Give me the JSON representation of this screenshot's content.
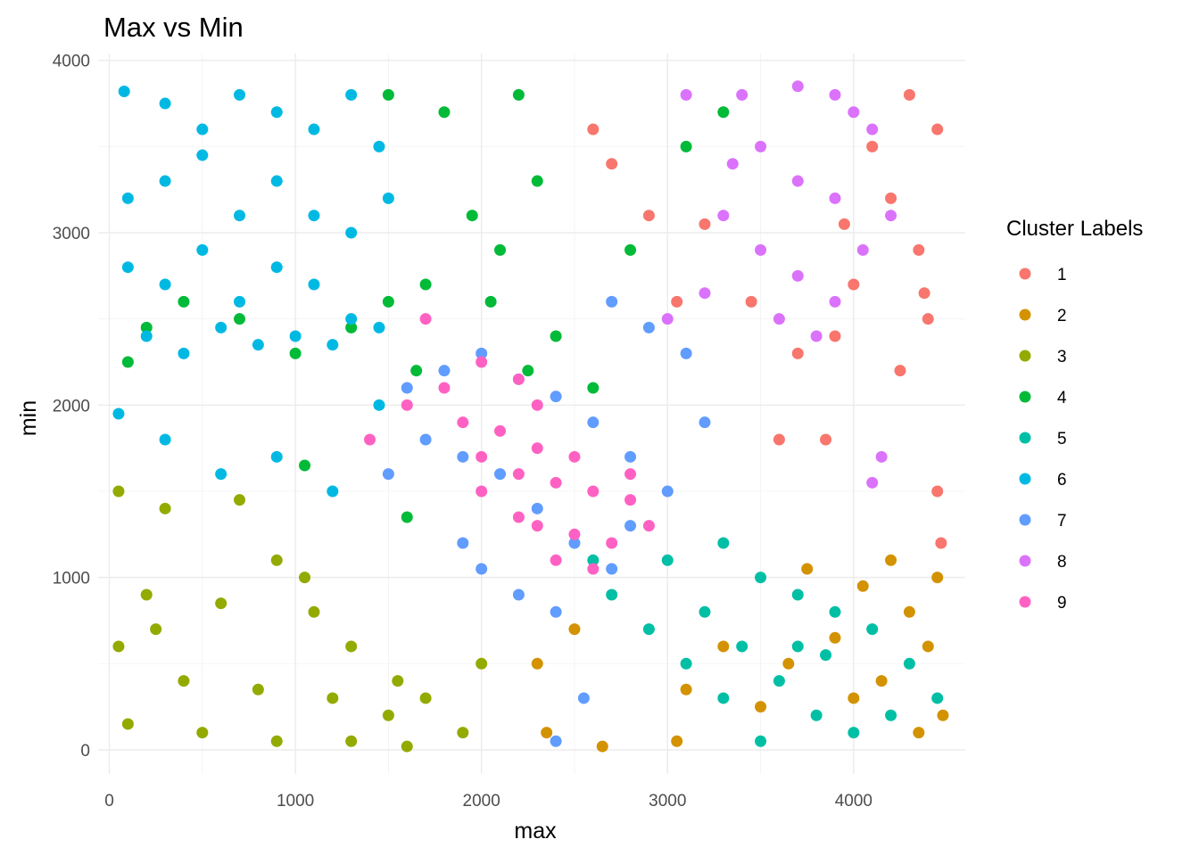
{
  "chart_data": {
    "type": "scatter",
    "title": "Max vs Min",
    "xlabel": "max",
    "ylabel": "min",
    "xlim": [
      -60,
      4600
    ],
    "ylim": [
      -140,
      4040
    ],
    "x_ticks": [
      0,
      1000,
      2000,
      3000,
      4000
    ],
    "y_ticks": [
      0,
      1000,
      2000,
      3000,
      4000
    ],
    "grid": true,
    "legend": {
      "title": "Cluster Labels",
      "position": "right"
    },
    "series": [
      {
        "name": "1",
        "color": "#F8766D",
        "points": [
          [
            4300,
            3800
          ],
          [
            4450,
            3600
          ],
          [
            4200,
            3200
          ],
          [
            4350,
            2900
          ],
          [
            4400,
            2500
          ],
          [
            4250,
            2200
          ],
          [
            4100,
            3500
          ],
          [
            3950,
            3050
          ],
          [
            4380,
            2650
          ],
          [
            3900,
            2400
          ],
          [
            3700,
            2300
          ],
          [
            3450,
            2600
          ],
          [
            3200,
            3050
          ],
          [
            3050,
            2600
          ],
          [
            2900,
            3100
          ],
          [
            2700,
            3400
          ],
          [
            2600,
            3600
          ],
          [
            3600,
            1800
          ],
          [
            3850,
            1800
          ],
          [
            4450,
            1500
          ],
          [
            4470,
            1200
          ],
          [
            4000,
            2700
          ]
        ]
      },
      {
        "name": "2",
        "color": "#D39200",
        "points": [
          [
            4200,
            1100
          ],
          [
            4050,
            950
          ],
          [
            4300,
            800
          ],
          [
            4400,
            600
          ],
          [
            4150,
            400
          ],
          [
            4480,
            200
          ],
          [
            4350,
            100
          ],
          [
            4000,
            300
          ],
          [
            3900,
            650
          ],
          [
            3650,
            500
          ],
          [
            3500,
            250
          ],
          [
            3300,
            600
          ],
          [
            3100,
            350
          ],
          [
            3050,
            50
          ],
          [
            2500,
            700
          ],
          [
            2300,
            500
          ],
          [
            2350,
            100
          ],
          [
            2650,
            20
          ],
          [
            4450,
            1000
          ],
          [
            3750,
            1050
          ]
        ]
      },
      {
        "name": "3",
        "color": "#93AA00",
        "points": [
          [
            50,
            1500
          ],
          [
            300,
            1400
          ],
          [
            700,
            1450
          ],
          [
            900,
            1100
          ],
          [
            200,
            900
          ],
          [
            600,
            850
          ],
          [
            1100,
            800
          ],
          [
            1300,
            600
          ],
          [
            50,
            600
          ],
          [
            400,
            400
          ],
          [
            800,
            350
          ],
          [
            1200,
            300
          ],
          [
            1500,
            200
          ],
          [
            100,
            150
          ],
          [
            500,
            100
          ],
          [
            900,
            50
          ],
          [
            1300,
            50
          ],
          [
            1550,
            400
          ],
          [
            1700,
            300
          ],
          [
            2000,
            500
          ],
          [
            1900,
            100
          ],
          [
            1600,
            20
          ],
          [
            250,
            700
          ],
          [
            1050,
            1000
          ]
        ]
      },
      {
        "name": "4",
        "color": "#00BA38",
        "points": [
          [
            1500,
            3800
          ],
          [
            1800,
            3700
          ],
          [
            2200,
            3800
          ],
          [
            2300,
            3300
          ],
          [
            1950,
            3100
          ],
          [
            2100,
            2900
          ],
          [
            1700,
            2700
          ],
          [
            1500,
            2600
          ],
          [
            1300,
            2450
          ],
          [
            1000,
            2300
          ],
          [
            700,
            2500
          ],
          [
            400,
            2600
          ],
          [
            200,
            2450
          ],
          [
            100,
            2250
          ],
          [
            1050,
            1650
          ],
          [
            1600,
            1350
          ],
          [
            2400,
            2400
          ],
          [
            2600,
            2100
          ],
          [
            2800,
            2900
          ],
          [
            3100,
            3500
          ],
          [
            3300,
            3700
          ],
          [
            2250,
            2200
          ],
          [
            2050,
            2600
          ],
          [
            1650,
            2200
          ]
        ]
      },
      {
        "name": "5",
        "color": "#00BFA5",
        "points": [
          [
            3000,
            1100
          ],
          [
            3300,
            1200
          ],
          [
            3500,
            1000
          ],
          [
            3700,
            900
          ],
          [
            3900,
            800
          ],
          [
            4100,
            700
          ],
          [
            4300,
            500
          ],
          [
            4450,
            300
          ],
          [
            3200,
            800
          ],
          [
            3400,
            600
          ],
          [
            3600,
            400
          ],
          [
            3800,
            200
          ],
          [
            4000,
            100
          ],
          [
            3100,
            500
          ],
          [
            3300,
            300
          ],
          [
            3500,
            50
          ],
          [
            2700,
            900
          ],
          [
            2600,
            1100
          ],
          [
            2900,
            700
          ],
          [
            3700,
            600
          ],
          [
            4200,
            200
          ],
          [
            3850,
            550
          ]
        ]
      },
      {
        "name": "6",
        "color": "#00B9E3",
        "points": [
          [
            80,
            3820
          ],
          [
            300,
            3750
          ],
          [
            500,
            3600
          ],
          [
            700,
            3800
          ],
          [
            900,
            3700
          ],
          [
            1100,
            3600
          ],
          [
            1300,
            3800
          ],
          [
            1450,
            3500
          ],
          [
            100,
            3200
          ],
          [
            300,
            3300
          ],
          [
            500,
            3450
          ],
          [
            700,
            3100
          ],
          [
            900,
            3300
          ],
          [
            1100,
            3100
          ],
          [
            1300,
            3000
          ],
          [
            1500,
            3200
          ],
          [
            100,
            2800
          ],
          [
            300,
            2700
          ],
          [
            500,
            2900
          ],
          [
            700,
            2600
          ],
          [
            900,
            2800
          ],
          [
            1100,
            2700
          ],
          [
            1300,
            2500
          ],
          [
            1450,
            2450
          ],
          [
            200,
            2400
          ],
          [
            400,
            2300
          ],
          [
            600,
            2450
          ],
          [
            800,
            2350
          ],
          [
            1000,
            2400
          ],
          [
            1200,
            2350
          ],
          [
            50,
            1950
          ],
          [
            300,
            1800
          ],
          [
            600,
            1600
          ],
          [
            900,
            1700
          ],
          [
            1200,
            1500
          ],
          [
            1450,
            2000
          ]
        ]
      },
      {
        "name": "7",
        "color": "#619CFF",
        "points": [
          [
            1600,
            2100
          ],
          [
            1800,
            2200
          ],
          [
            2000,
            2300
          ],
          [
            2200,
            2150
          ],
          [
            2400,
            2050
          ],
          [
            2600,
            1900
          ],
          [
            2800,
            1700
          ],
          [
            3000,
            1500
          ],
          [
            1700,
            1800
          ],
          [
            1900,
            1700
          ],
          [
            2100,
            1600
          ],
          [
            2300,
            1400
          ],
          [
            2500,
            1200
          ],
          [
            2700,
            1050
          ],
          [
            1500,
            1600
          ],
          [
            1900,
            1200
          ],
          [
            2200,
            900
          ],
          [
            2400,
            800
          ],
          [
            2700,
            2600
          ],
          [
            2900,
            2450
          ],
          [
            3100,
            2300
          ],
          [
            3200,
            1900
          ],
          [
            2800,
            1300
          ],
          [
            2000,
            1050
          ],
          [
            2550,
            300
          ],
          [
            2400,
            50
          ]
        ]
      },
      {
        "name": "8",
        "color": "#DB72FB",
        "points": [
          [
            3100,
            3800
          ],
          [
            3400,
            3800
          ],
          [
            3700,
            3850
          ],
          [
            3900,
            3800
          ],
          [
            3500,
            3500
          ],
          [
            3700,
            3300
          ],
          [
            3900,
            3200
          ],
          [
            3500,
            2900
          ],
          [
            3700,
            2750
          ],
          [
            3900,
            2600
          ],
          [
            3600,
            2500
          ],
          [
            3800,
            2400
          ],
          [
            4100,
            3600
          ],
          [
            4200,
            3100
          ],
          [
            4050,
            2900
          ],
          [
            3300,
            3100
          ],
          [
            3200,
            2650
          ],
          [
            3000,
            2500
          ],
          [
            4150,
            1700
          ],
          [
            4100,
            1550
          ],
          [
            3350,
            3400
          ],
          [
            4000,
            3700
          ]
        ]
      },
      {
        "name": "9",
        "color": "#FF61C3",
        "points": [
          [
            1600,
            2000
          ],
          [
            1800,
            2100
          ],
          [
            2000,
            2250
          ],
          [
            2200,
            2150
          ],
          [
            2300,
            2000
          ],
          [
            1900,
            1900
          ],
          [
            2100,
            1850
          ],
          [
            2300,
            1750
          ],
          [
            2500,
            1700
          ],
          [
            2000,
            1700
          ],
          [
            2200,
            1600
          ],
          [
            2400,
            1550
          ],
          [
            2600,
            1500
          ],
          [
            2800,
            1450
          ],
          [
            2300,
            1300
          ],
          [
            2500,
            1250
          ],
          [
            2700,
            1200
          ],
          [
            2900,
            1300
          ],
          [
            2400,
            1100
          ],
          [
            2600,
            1050
          ],
          [
            1700,
            2500
          ],
          [
            1400,
            1800
          ],
          [
            2800,
            1600
          ],
          [
            2200,
            1350
          ],
          [
            2000,
            1500
          ]
        ]
      }
    ]
  }
}
